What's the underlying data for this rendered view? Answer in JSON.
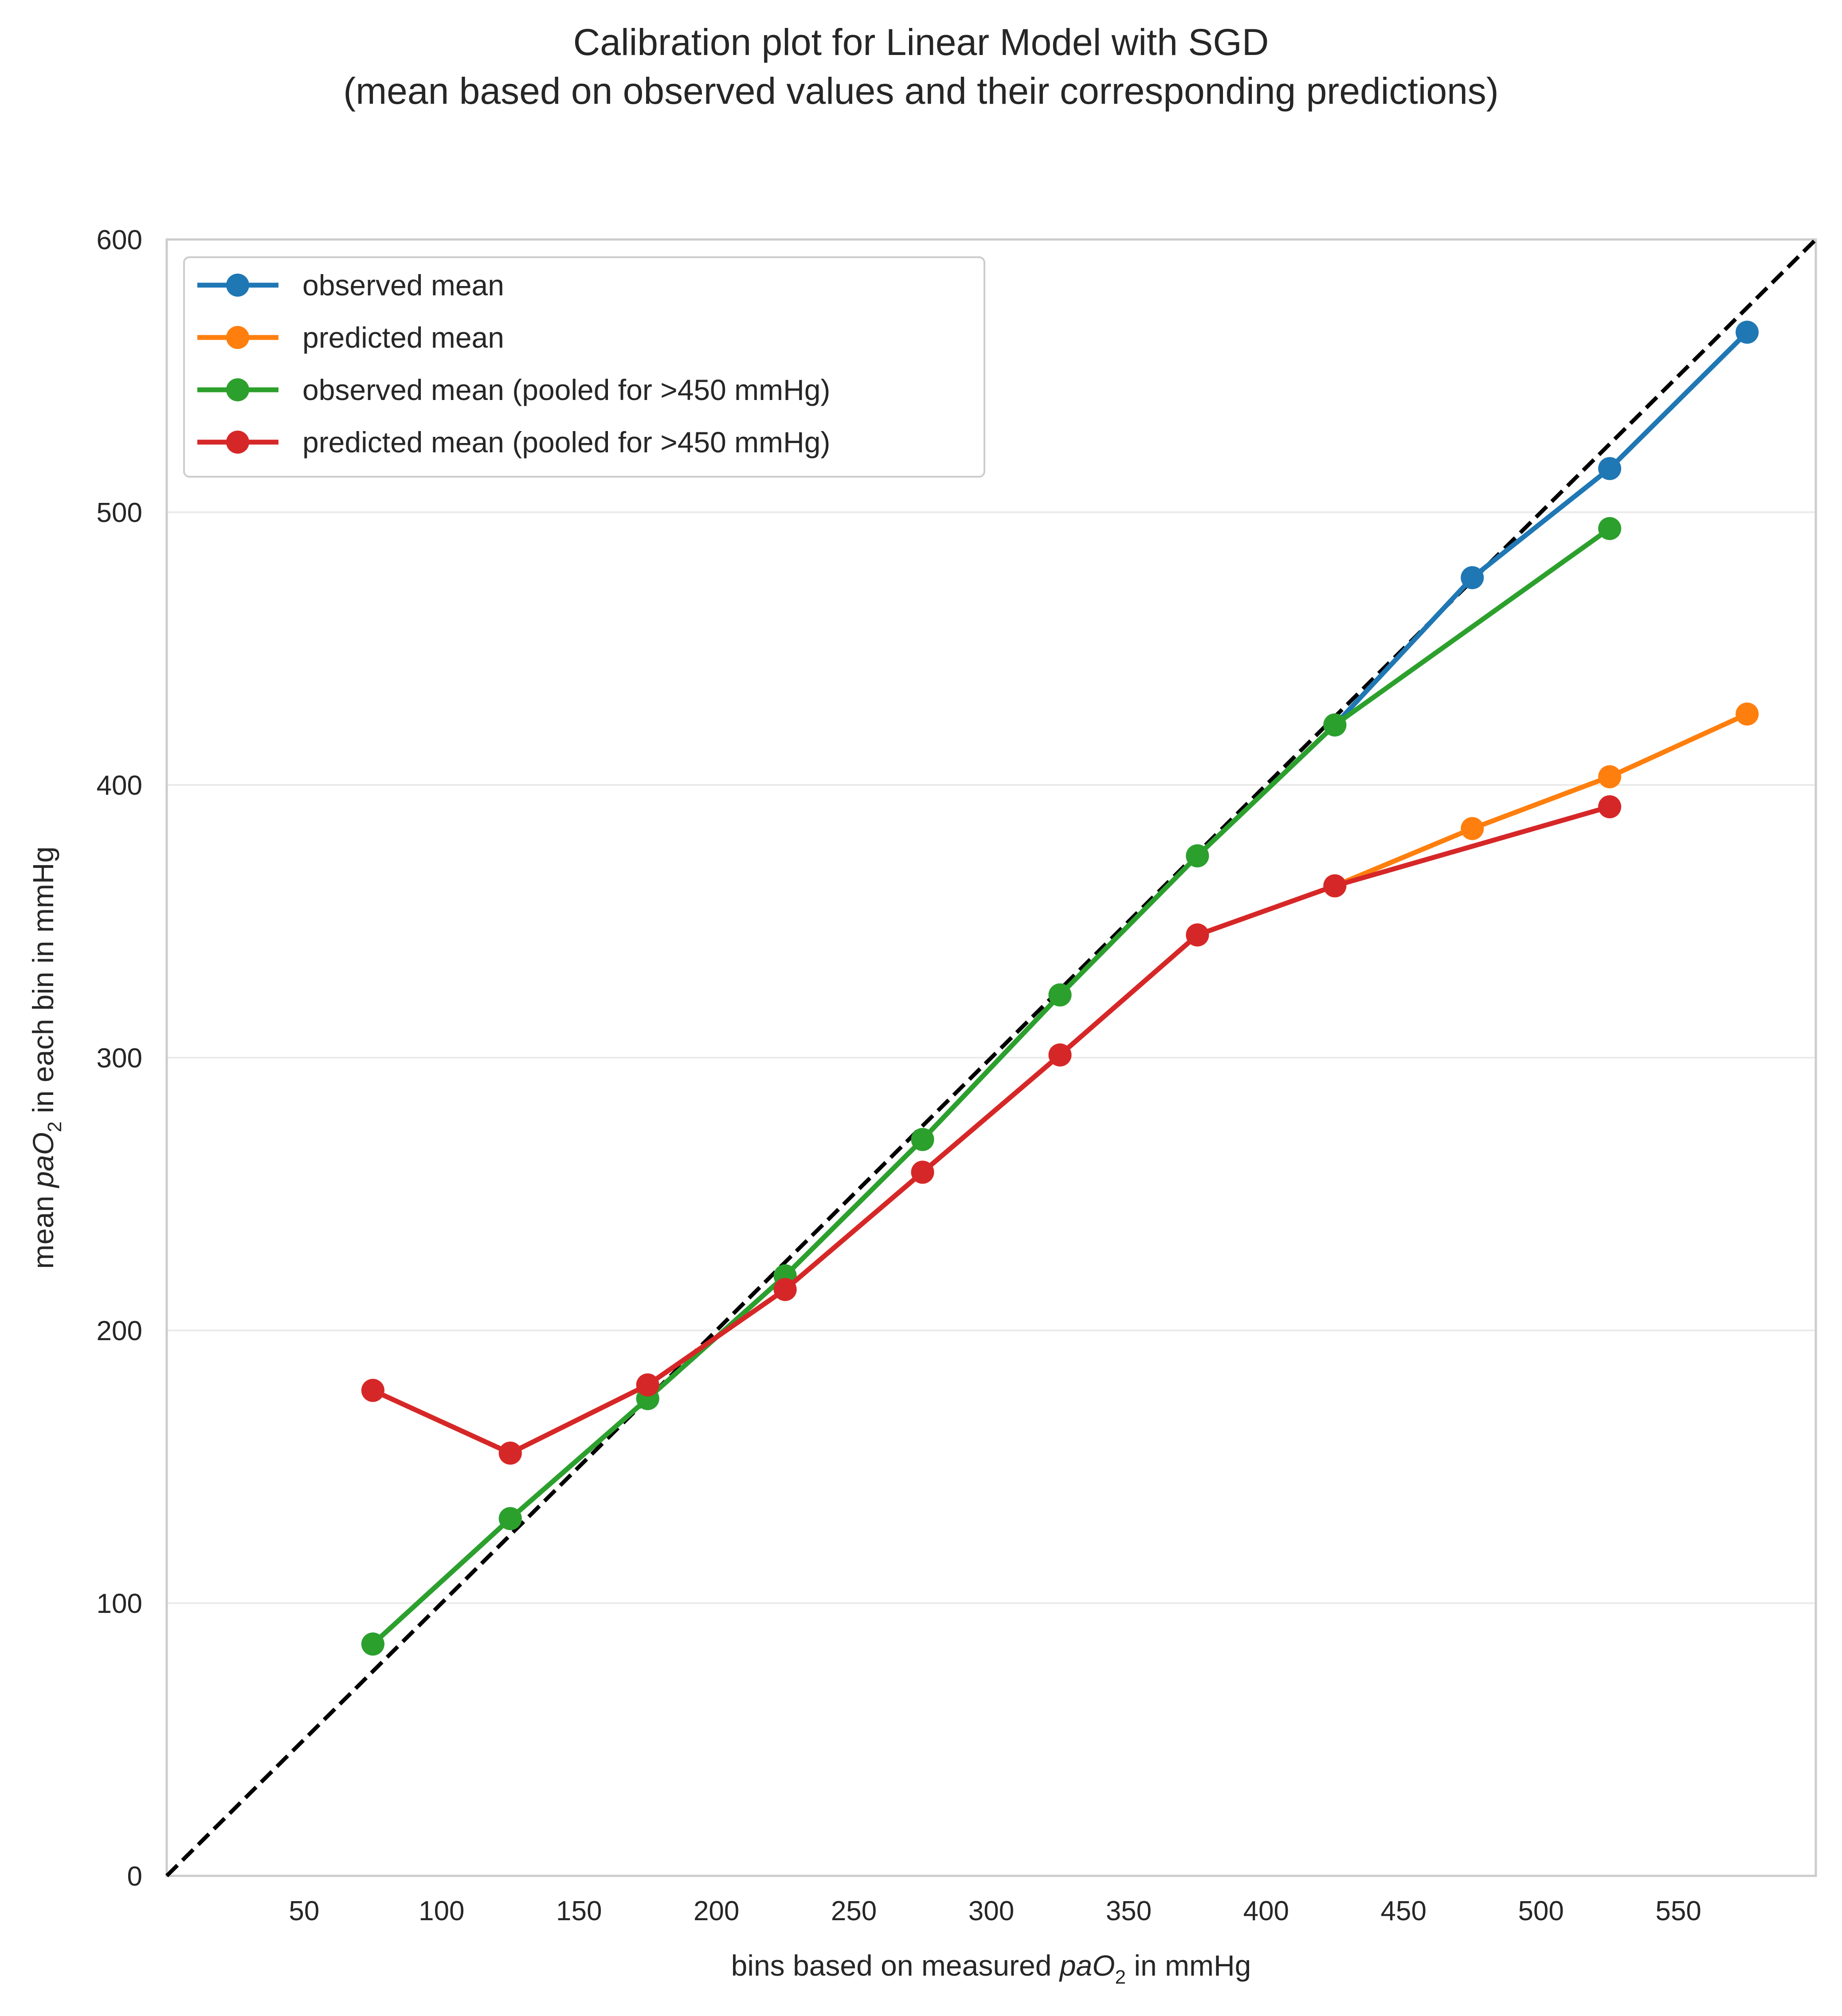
{
  "chart_data": {
    "type": "line",
    "title": "Calibration plot for Linear Model with SGD",
    "subtitle": "(mean based on observed values and their corresponding predictions)",
    "xlabel": {
      "prefix": "bins based on measured ",
      "var": "paO",
      "sub": "2",
      "suffix": " in mmHg"
    },
    "ylabel": {
      "prefix": "mean ",
      "var": "paO",
      "sub": "2",
      "suffix": " in each bin in mmHg"
    },
    "xlim": [
      0,
      600
    ],
    "ylim": [
      0,
      600
    ],
    "x_ticks": [
      50,
      100,
      150,
      200,
      250,
      300,
      350,
      400,
      450,
      500,
      550
    ],
    "y_ticks": [
      0,
      100,
      200,
      300,
      400,
      500,
      600
    ],
    "grid": true,
    "legend_position": "top-left",
    "reference_line": {
      "style": "dashed",
      "color": "#000000",
      "points": [
        [
          0,
          0
        ],
        [
          600,
          600
        ]
      ]
    },
    "series": [
      {
        "name": "observed mean",
        "color": "#1f77b4",
        "x": [
          75,
          125,
          175,
          225,
          275,
          325,
          375,
          425,
          475,
          525,
          575
        ],
        "y": [
          85,
          131,
          175,
          220,
          270,
          323,
          374,
          422,
          476,
          516,
          566
        ]
      },
      {
        "name": "predicted mean",
        "color": "#ff7f0e",
        "x": [
          75,
          125,
          175,
          225,
          275,
          325,
          375,
          425,
          475,
          525,
          575
        ],
        "y": [
          178,
          155,
          180,
          215,
          258,
          301,
          345,
          363,
          384,
          403,
          426
        ]
      },
      {
        "name": "observed mean (pooled for >450 mmHg)",
        "color": "#2ca02c",
        "x": [
          75,
          125,
          175,
          225,
          275,
          325,
          375,
          425,
          525
        ],
        "y": [
          85,
          131,
          175,
          220,
          270,
          323,
          374,
          422,
          494
        ]
      },
      {
        "name": "predicted mean (pooled for >450 mmHg)",
        "color": "#d62728",
        "x": [
          75,
          125,
          175,
          225,
          275,
          325,
          375,
          425,
          525
        ],
        "y": [
          178,
          155,
          180,
          215,
          258,
          301,
          345,
          363,
          392
        ]
      }
    ]
  }
}
